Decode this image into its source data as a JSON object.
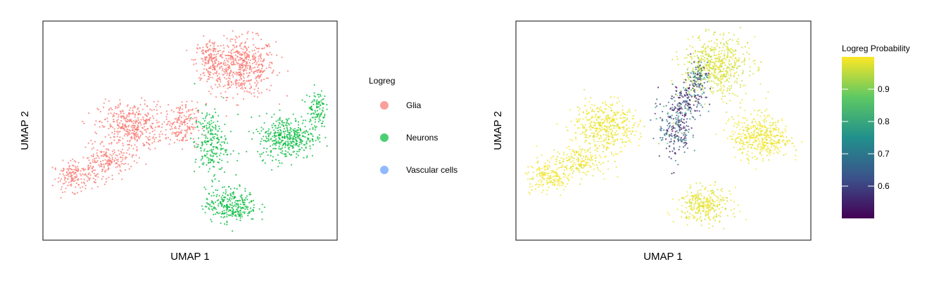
{
  "chart_data": [
    {
      "type": "scatter",
      "xlabel": "UMAP 1",
      "ylabel": "UMAP 2",
      "grid": false,
      "legend": {
        "title": "Logreg",
        "placement": "right",
        "entries": [
          {
            "label": "Glia",
            "color": "#F8766D"
          },
          {
            "label": "Neurons",
            "color": "#00BA38"
          },
          {
            "label": "Vascular cells",
            "color": "#619CFF"
          }
        ]
      },
      "clusters": [
        {
          "category": "Glia",
          "center": [
            0.68,
            0.79
          ],
          "spread": [
            0.1,
            0.12
          ],
          "weight": 9
        },
        {
          "category": "Glia",
          "center": [
            0.57,
            0.82
          ],
          "spread": [
            0.05,
            0.09
          ],
          "weight": 3
        },
        {
          "category": "Glia",
          "center": [
            0.3,
            0.52
          ],
          "spread": [
            0.1,
            0.1
          ],
          "weight": 7
        },
        {
          "category": "Glia",
          "center": [
            0.11,
            0.29
          ],
          "spread": [
            0.07,
            0.06
          ],
          "weight": 3
        },
        {
          "category": "Glia",
          "center": [
            0.22,
            0.36
          ],
          "spread": [
            0.08,
            0.06
          ],
          "weight": 3
        },
        {
          "category": "Glia",
          "center": [
            0.47,
            0.53
          ],
          "spread": [
            0.05,
            0.09
          ],
          "weight": 3
        },
        {
          "category": "Neurons",
          "center": [
            0.83,
            0.47
          ],
          "spread": [
            0.09,
            0.09
          ],
          "weight": 7
        },
        {
          "category": "Neurons",
          "center": [
            0.57,
            0.44
          ],
          "spread": [
            0.05,
            0.14
          ],
          "weight": 4
        },
        {
          "category": "Neurons",
          "center": [
            0.64,
            0.16
          ],
          "spread": [
            0.08,
            0.07
          ],
          "weight": 5
        },
        {
          "category": "Neurons",
          "center": [
            0.93,
            0.6
          ],
          "spread": [
            0.03,
            0.08
          ],
          "weight": 2
        }
      ]
    },
    {
      "type": "scatter",
      "xlabel": "UMAP 1",
      "ylabel": "UMAP 2",
      "grid": false,
      "colorbar": {
        "title": "Logreg Probability",
        "range": [
          0.5,
          1.0
        ],
        "ticks": [
          0.6,
          0.7,
          0.8,
          0.9
        ],
        "colormap": [
          "#440154",
          "#3B528B",
          "#21908C",
          "#5DC863",
          "#FDE725"
        ]
      },
      "clusters": [
        {
          "center": [
            0.68,
            0.79
          ],
          "spread": [
            0.1,
            0.12
          ],
          "weight": 9,
          "prob": 0.97
        },
        {
          "center": [
            0.3,
            0.52
          ],
          "spread": [
            0.1,
            0.1
          ],
          "weight": 7,
          "prob": 0.99
        },
        {
          "center": [
            0.11,
            0.29
          ],
          "spread": [
            0.07,
            0.06
          ],
          "weight": 3,
          "prob": 0.99
        },
        {
          "center": [
            0.22,
            0.36
          ],
          "spread": [
            0.08,
            0.06
          ],
          "weight": 3,
          "prob": 0.99
        },
        {
          "center": [
            0.83,
            0.47
          ],
          "spread": [
            0.09,
            0.09
          ],
          "weight": 7,
          "prob": 0.99
        },
        {
          "center": [
            0.64,
            0.16
          ],
          "spread": [
            0.08,
            0.07
          ],
          "weight": 5,
          "prob": 0.98
        },
        {
          "center": [
            0.54,
            0.52
          ],
          "spread": [
            0.05,
            0.14
          ],
          "weight": 4,
          "prob": 0.62
        },
        {
          "center": [
            0.59,
            0.65
          ],
          "spread": [
            0.05,
            0.08
          ],
          "weight": 2,
          "prob": 0.6
        },
        {
          "center": [
            0.62,
            0.75
          ],
          "spread": [
            0.03,
            0.06
          ],
          "weight": 1.5,
          "prob": 0.7
        }
      ]
    }
  ]
}
